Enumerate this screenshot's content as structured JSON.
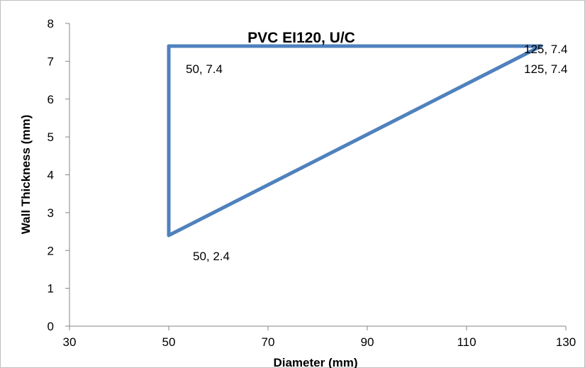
{
  "chart_data": {
    "type": "line",
    "title": "PVC EI120, U/C",
    "xlabel": "Diameter (mm)",
    "ylabel": "Wall Thickness (mm)",
    "xlim": [
      30,
      130
    ],
    "ylim": [
      0,
      8
    ],
    "x_ticks": [
      30,
      50,
      70,
      90,
      110,
      130
    ],
    "y_ticks": [
      0,
      1,
      2,
      3,
      4,
      5,
      6,
      7,
      8
    ],
    "grid": false,
    "legend": "none",
    "series": [
      {
        "color": "#4f81bd",
        "points": [
          {
            "x": 50,
            "y": 2.4
          },
          {
            "x": 50,
            "y": 7.4
          },
          {
            "x": 125,
            "y": 7.4
          },
          {
            "x": 50,
            "y": 2.4
          }
        ]
      }
    ],
    "data_labels": [
      {
        "text": "50, 7.4",
        "x": 50,
        "y": 7.4
      },
      {
        "text": "125, 7.4",
        "x": 125,
        "y": 7.4
      },
      {
        "text": "125, 7.4",
        "x": 125,
        "y": 7.4
      },
      {
        "text": "50, 2.4",
        "x": 50,
        "y": 2.4
      }
    ]
  }
}
